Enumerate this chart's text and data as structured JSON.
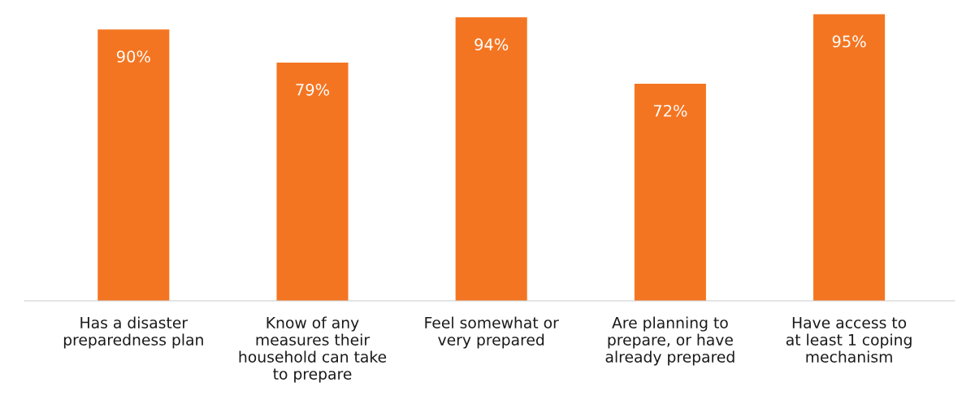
{
  "chart_data": {
    "type": "bar",
    "categories": [
      "Has a disaster\npreparedness plan",
      "Know of any\nmeasures their\nhousehold can take\nto prepare",
      "Feel somewhat or\nvery prepared",
      "Are planning to\nprepare, or have\nalready prepared",
      "Have access to\nat least 1 coping\nmechanism"
    ],
    "values": [
      90,
      79,
      94,
      72,
      95
    ],
    "value_labels": [
      "90%",
      "79%",
      "94%",
      "72%",
      "95%"
    ],
    "color": "#f47521",
    "grid": false,
    "legend": false
  }
}
